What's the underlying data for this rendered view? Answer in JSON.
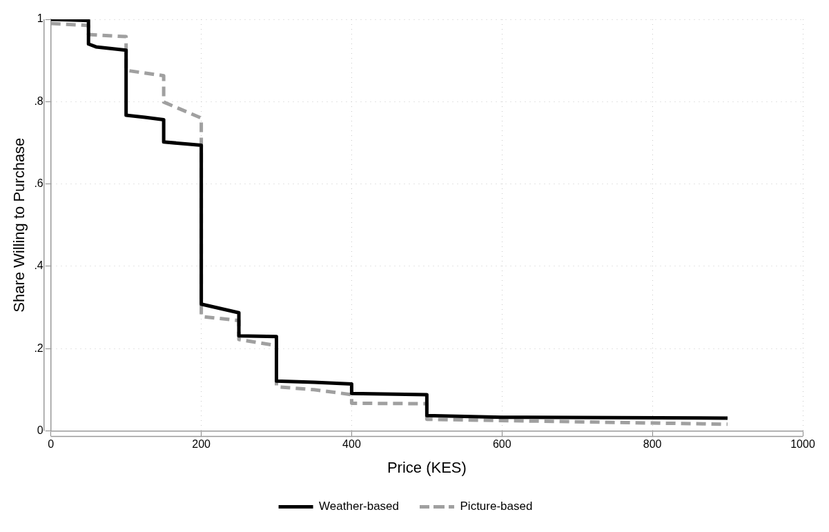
{
  "chart_data": {
    "type": "line",
    "xlabel": "Price (KES)",
    "ylabel": "Share Willing to Purchase",
    "xlim": [
      0,
      1000
    ],
    "xticks": [
      0,
      200,
      400,
      600,
      800,
      1000
    ],
    "ylim": [
      0,
      1
    ],
    "yticks": [
      {
        "value": 0,
        "label": "0"
      },
      {
        "value": 0.2,
        "label": ".2"
      },
      {
        "value": 0.4,
        "label": ".4"
      },
      {
        "value": 0.6,
        "label": ".6"
      },
      {
        "value": 0.8,
        "label": ".8"
      },
      {
        "value": 1,
        "label": "1"
      }
    ],
    "grid": true,
    "legend": "bottom",
    "marker": "none",
    "series": [
      {
        "name": "Weather-based",
        "color": "#000000",
        "line_style": "solid",
        "x": [
          0,
          50,
          50,
          60,
          100,
          100,
          125,
          150,
          150,
          200,
          200,
          250,
          250,
          300,
          300,
          350,
          400,
          400,
          500,
          500,
          600,
          900
        ],
        "values": [
          1.0,
          0.997,
          0.94,
          0.933,
          0.925,
          0.767,
          0.762,
          0.756,
          0.702,
          0.694,
          0.308,
          0.287,
          0.231,
          0.229,
          0.121,
          0.118,
          0.114,
          0.091,
          0.088,
          0.037,
          0.033,
          0.031
        ]
      },
      {
        "name": "Picture-based",
        "color": "#a0a0a0",
        "line_style": "dashed",
        "x": [
          0,
          50,
          50,
          100,
          100,
          150,
          150,
          200,
          200,
          250,
          250,
          300,
          300,
          350,
          400,
          400,
          500,
          500,
          900
        ],
        "values": [
          0.99,
          0.985,
          0.963,
          0.958,
          0.876,
          0.863,
          0.799,
          0.76,
          0.278,
          0.268,
          0.222,
          0.207,
          0.107,
          0.1,
          0.088,
          0.067,
          0.066,
          0.028,
          0.016
        ]
      }
    ]
  }
}
